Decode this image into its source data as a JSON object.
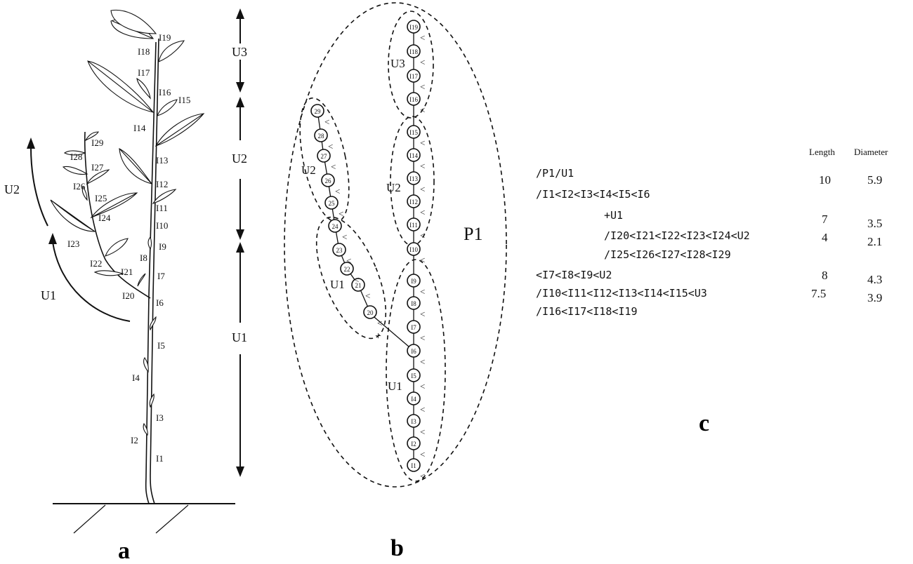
{
  "panels": {
    "a": "a",
    "b": "b",
    "c": "c"
  },
  "plant": {
    "internodes_main": [
      "I1",
      "I2",
      "I3",
      "I4",
      "I5",
      "I6",
      "I7",
      "I8",
      "I9",
      "I10",
      "I11",
      "I12",
      "I13",
      "I14",
      "I15",
      "I16",
      "I17",
      "I18",
      "I19"
    ],
    "internodes_branch": [
      "I20",
      "I21",
      "I22",
      "I23",
      "I24",
      "I25",
      "I26",
      "I27",
      "I28",
      "I29"
    ],
    "main_units": [
      "U1",
      "U2",
      "U3"
    ],
    "branch_units": [
      "U1",
      "U2"
    ]
  },
  "graph": {
    "plant_label": "P1",
    "main_nodes": [
      "I1",
      "I2",
      "I3",
      "I4",
      "I5",
      "I6",
      "I7",
      "I8",
      "I9",
      "I10",
      "I11",
      "I12",
      "I13",
      "I14",
      "I15",
      "I16",
      "I17",
      "I18",
      "I19"
    ],
    "branch_nodes": [
      "20",
      "21",
      "22",
      "23",
      "24",
      "25",
      "26",
      "27",
      "28",
      "29"
    ],
    "unit_labels": {
      "main_u1": "U1",
      "main_u2": "U2",
      "main_u3": "U3",
      "branch_u1": "U1",
      "branch_u2": "U2"
    },
    "branch_symbol": "+",
    "succession_symbol": "<"
  },
  "code": {
    "headers": {
      "length": "Length",
      "diameter": "Diameter"
    },
    "lines": [
      {
        "text": "/P1/U1",
        "length": "10",
        "diameter": "5.9"
      },
      {
        "text": "/I1<I2<I3<I4<I5<I6",
        "length": "",
        "diameter": ""
      },
      {
        "text": "+U1",
        "length": "7",
        "diameter": "3.5"
      },
      {
        "text": "/I20<I21<I22<I23<I24<U2",
        "length": "4",
        "diameter": "2.1"
      },
      {
        "text": "/I25<I26<I27<I28<I29",
        "length": "",
        "diameter": ""
      },
      {
        "text": "<I7<I8<I9<U2",
        "length": "8",
        "diameter": "4.3"
      },
      {
        "text": "/I10<I11<I12<I13<I14<I15<U3",
        "length": "7.5",
        "diameter": "3.9"
      },
      {
        "text": "/I16<I17<I18<I19",
        "length": "",
        "diameter": ""
      }
    ]
  }
}
